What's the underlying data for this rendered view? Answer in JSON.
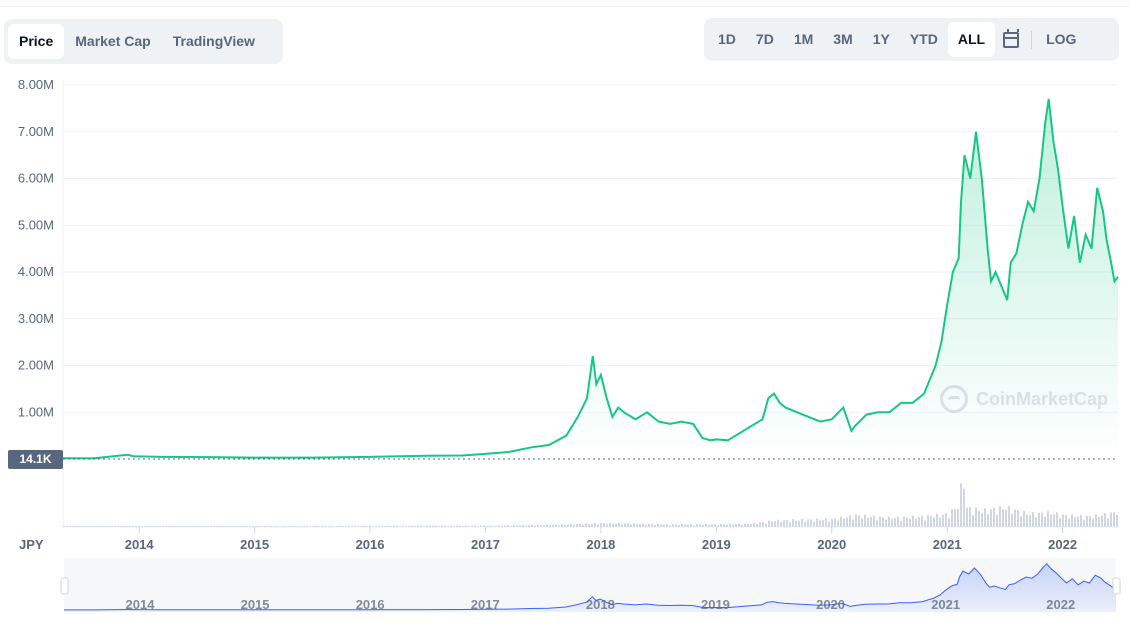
{
  "tabs_left": [
    {
      "label": "Price",
      "active": true
    },
    {
      "label": "Market Cap",
      "active": false
    },
    {
      "label": "TradingView",
      "active": false
    }
  ],
  "tabs_right": [
    {
      "label": "1D",
      "active": false
    },
    {
      "label": "7D",
      "active": false
    },
    {
      "label": "1M",
      "active": false
    },
    {
      "label": "3M",
      "active": false
    },
    {
      "label": "1Y",
      "active": false
    },
    {
      "label": "YTD",
      "active": false
    },
    {
      "label": "ALL",
      "active": true
    }
  ],
  "calendar_icon": "calendar-icon",
  "log_label": "LOG",
  "current_price_badge": "14.1K",
  "currency_label": "JPY",
  "watermark": "CoinMarketCap",
  "colors": {
    "line": "#16c784",
    "fill": "#16c784",
    "navigator_line": "#3861fb",
    "volume": "#cfd6e4",
    "grid": "#eff2f5",
    "text": "#58667e"
  },
  "chart_data": {
    "type": "area",
    "title": "",
    "xlabel": "",
    "ylabel": "",
    "currency": "JPY",
    "ylim": [
      0,
      8000000
    ],
    "y_ticks": [
      {
        "value": 1000000,
        "label": "1.00M"
      },
      {
        "value": 2000000,
        "label": "2.00M"
      },
      {
        "value": 3000000,
        "label": "3.00M"
      },
      {
        "value": 4000000,
        "label": "4.00M"
      },
      {
        "value": 5000000,
        "label": "5.00M"
      },
      {
        "value": 6000000,
        "label": "6.00M"
      },
      {
        "value": 7000000,
        "label": "7.00M"
      },
      {
        "value": 8000000,
        "label": "8.00M"
      }
    ],
    "x_ticks": [
      "2014",
      "2015",
      "2016",
      "2017",
      "2018",
      "2019",
      "2020",
      "2021",
      "2022"
    ],
    "xlim": [
      2013.34,
      2022.48
    ],
    "grid": true,
    "series": [
      {
        "x": [
          2013.34,
          2013.6,
          2013.9,
          2013.95,
          2014.2,
          2014.6,
          2015.0,
          2015.5,
          2016.0,
          2016.5,
          2016.8,
          2017.0,
          2017.2,
          2017.4,
          2017.55,
          2017.7,
          2017.8,
          2017.88,
          2017.93,
          2017.96,
          2018.0,
          2018.05,
          2018.1,
          2018.15,
          2018.2,
          2018.3,
          2018.4,
          2018.5,
          2018.6,
          2018.7,
          2018.8,
          2018.88,
          2018.95,
          2019.0,
          2019.1,
          2019.2,
          2019.3,
          2019.4,
          2019.45,
          2019.5,
          2019.55,
          2019.6,
          2019.7,
          2019.8,
          2019.9,
          2020.0,
          2020.1,
          2020.17,
          2020.2,
          2020.3,
          2020.4,
          2020.5,
          2020.6,
          2020.7,
          2020.8,
          2020.9,
          2020.95,
          2021.0,
          2021.05,
          2021.1,
          2021.12,
          2021.15,
          2021.2,
          2021.25,
          2021.3,
          2021.35,
          2021.38,
          2021.42,
          2021.47,
          2021.52,
          2021.55,
          2021.6,
          2021.65,
          2021.7,
          2021.75,
          2021.8,
          2021.85,
          2021.88,
          2021.92,
          2021.96,
          2022.0,
          2022.05,
          2022.1,
          2022.15,
          2022.2,
          2022.25,
          2022.3,
          2022.35,
          2022.38,
          2022.42,
          2022.45,
          2022.48
        ],
        "y": [
          14100,
          12000,
          90000,
          60000,
          45000,
          40000,
          30000,
          30000,
          45000,
          70000,
          75000,
          110000,
          150000,
          250000,
          300000,
          500000,
          900000,
          1300000,
          2200000,
          1600000,
          1800000,
          1300000,
          900000,
          1100000,
          1000000,
          850000,
          1000000,
          800000,
          750000,
          800000,
          750000,
          450000,
          400000,
          420000,
          400000,
          550000,
          700000,
          850000,
          1300000,
          1400000,
          1200000,
          1100000,
          1000000,
          900000,
          800000,
          850000,
          1100000,
          600000,
          700000,
          950000,
          1000000,
          1000000,
          1200000,
          1200000,
          1400000,
          2000000,
          2500000,
          3300000,
          4000000,
          4300000,
          5500000,
          6500000,
          6000000,
          7000000,
          6000000,
          4500000,
          3800000,
          4000000,
          3700000,
          3400000,
          4200000,
          4400000,
          5000000,
          5500000,
          5300000,
          6000000,
          7200000,
          7700000,
          6800000,
          6200000,
          5400000,
          4500000,
          5200000,
          4200000,
          4800000,
          4500000,
          5800000,
          5300000,
          4700000,
          4200000,
          3800000,
          3900000
        ]
      }
    ],
    "volume": {
      "x": [
        2013.34,
        2016.5,
        2017.0,
        2017.5,
        2017.9,
        2018.0,
        2018.5,
        2019.0,
        2019.3,
        2019.5,
        2020.0,
        2020.2,
        2020.5,
        2020.8,
        2021.0,
        2021.1,
        2021.13,
        2021.15,
        2021.3,
        2021.5,
        2021.7,
        2021.9,
        2022.0,
        2022.2,
        2022.4,
        2022.48
      ],
      "y": [
        0.01,
        0.02,
        0.02,
        0.03,
        0.05,
        0.06,
        0.04,
        0.04,
        0.05,
        0.1,
        0.12,
        0.18,
        0.14,
        0.16,
        0.2,
        0.35,
        1.0,
        0.3,
        0.25,
        0.3,
        0.2,
        0.22,
        0.18,
        0.16,
        0.2,
        0.25
      ]
    }
  }
}
